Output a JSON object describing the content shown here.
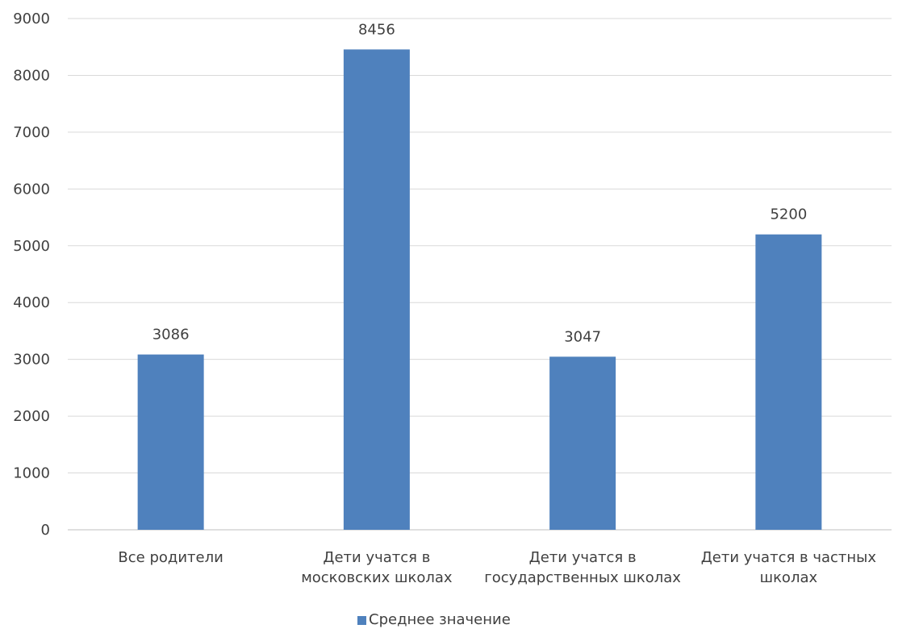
{
  "chart_data": {
    "type": "bar",
    "categories": [
      [
        "Все родители"
      ],
      [
        "Дети учатся в",
        "московских школах"
      ],
      [
        "Дети учатся в",
        "государственных школах"
      ],
      [
        "Дети учатся в частных",
        "школах"
      ]
    ],
    "series": [
      {
        "name": "Среднее значение",
        "values": [
          3086,
          8456,
          3047,
          5200
        ],
        "color": "#4f81bd"
      }
    ],
    "ylim": [
      0,
      9000
    ],
    "yticks": [
      0,
      1000,
      2000,
      3000,
      4000,
      5000,
      6000,
      7000,
      8000,
      9000
    ],
    "grid": true,
    "legend_position": "bottom-center",
    "title": "",
    "xlabel": "",
    "ylabel": ""
  }
}
